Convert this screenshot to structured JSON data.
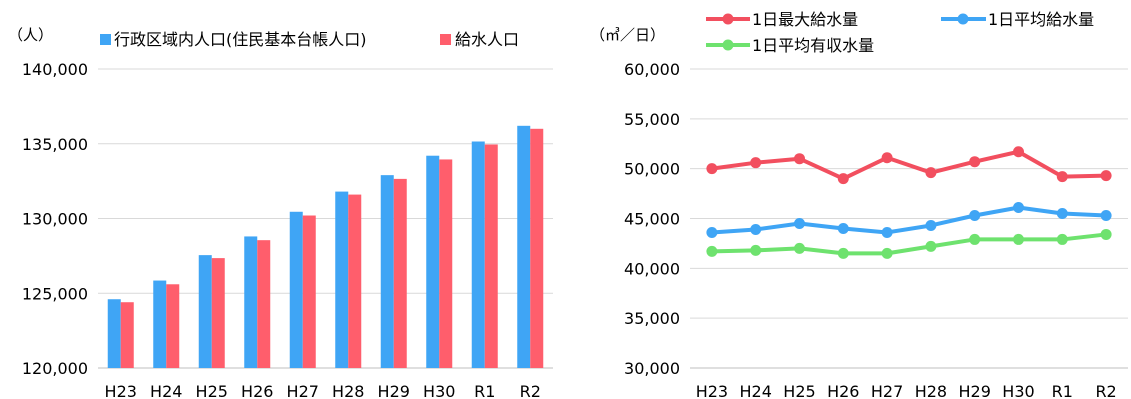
{
  "chart_data": [
    {
      "type": "bar",
      "unit_label": "（人）",
      "categories": [
        "H23",
        "H24",
        "H25",
        "H26",
        "H27",
        "H28",
        "H29",
        "H30",
        "R1",
        "R2"
      ],
      "series": [
        {
          "name": "行政区域内人口(住民基本台帳人口)",
          "color": "#3fa5f5",
          "values": [
            124600,
            125850,
            127550,
            128800,
            130450,
            131800,
            132900,
            134200,
            135150,
            136200
          ]
        },
        {
          "name": "給水人口",
          "color": "#ff5e6c",
          "values": [
            124400,
            125600,
            127350,
            128550,
            130200,
            131600,
            132650,
            133950,
            134950,
            136000
          ]
        }
      ],
      "ylim": [
        120000,
        140000
      ],
      "yticks": [
        120000,
        125000,
        130000,
        135000,
        140000
      ],
      "ytick_labels": [
        "120,000",
        "125,000",
        "130,000",
        "135,000",
        "140,000"
      ],
      "legend": "top",
      "grid": true
    },
    {
      "type": "line",
      "unit_label": "（㎥／日）",
      "categories": [
        "H23",
        "H24",
        "H25",
        "H26",
        "H27",
        "H28",
        "H29",
        "H30",
        "R1",
        "R2"
      ],
      "series": [
        {
          "name": "1日最大給水量",
          "color": "#f24f5f",
          "values": [
            50000,
            50600,
            51000,
            49000,
            51100,
            49600,
            50700,
            51700,
            49200,
            49300
          ]
        },
        {
          "name": "1日平均給水量",
          "color": "#3fa5f5",
          "values": [
            43600,
            43900,
            44500,
            44000,
            43600,
            44300,
            45300,
            46100,
            45500,
            45300
          ]
        },
        {
          "name": "1日平均有収水量",
          "color": "#6ee26e",
          "values": [
            41700,
            41800,
            42000,
            41500,
            41500,
            42200,
            42900,
            42900,
            42900,
            43400
          ]
        }
      ],
      "ylim": [
        30000,
        60000
      ],
      "yticks": [
        30000,
        35000,
        40000,
        45000,
        50000,
        55000,
        60000
      ],
      "ytick_labels": [
        "30,000",
        "35,000",
        "40,000",
        "45,000",
        "50,000",
        "55,000",
        "60,000"
      ],
      "legend": "top",
      "grid": true
    }
  ]
}
